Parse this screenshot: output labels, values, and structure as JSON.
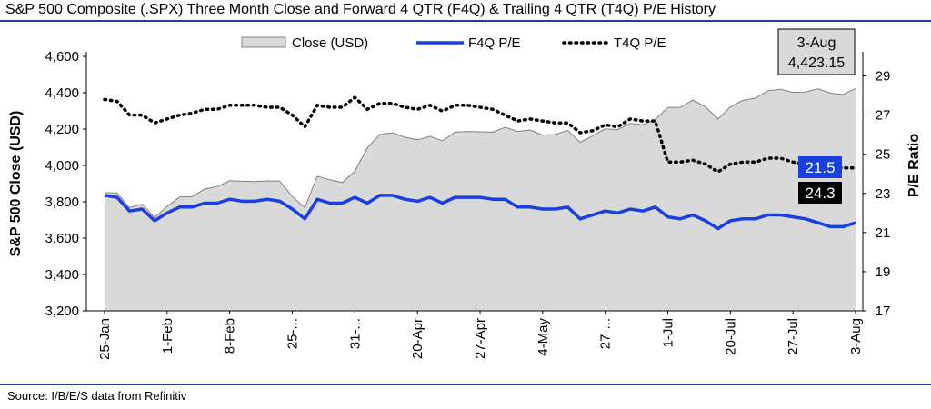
{
  "page": {
    "title": "S&P 500 Composite (.SPX) Three Month Close and Forward 4 QTR (F4Q) & Trailing 4 QTR (T4Q) P/E History",
    "source": "Source: I/B/E/S data from Refinitiv"
  },
  "colors": {
    "rule": "#1f3f9e",
    "area_fill": "#d9d9d9",
    "area_stroke": "#808080",
    "f4q": "#1a3fe0",
    "t4q": "#000000",
    "f4q_label_bg": "#1a3fe0",
    "t4q_label_bg": "#000000",
    "callout_bg": "#d9d9d9"
  },
  "chart_data": {
    "type": "area+line",
    "left_axis": {
      "label": "S&P 500 Close (USD)",
      "range": [
        3200,
        4600
      ],
      "ticks": [
        "3,200",
        "3,400",
        "3,600",
        "3,800",
        "4,000",
        "4,200",
        "4,400",
        "4,600"
      ]
    },
    "right_axis": {
      "label": "P/E Ratio",
      "range": [
        17,
        30
      ],
      "ticks": [
        "17",
        "19",
        "21",
        "23",
        "25",
        "27",
        "29"
      ]
    },
    "x_labels": [
      "25-Jan",
      "1-Feb",
      "8-Feb",
      "25-...",
      "31-...",
      "20-Apr",
      "27-Apr",
      "4-May",
      "27-...",
      "1-Jul",
      "20-Jul",
      "27-Jul",
      "3-Aug"
    ],
    "x_label_positions": [
      0,
      5,
      10,
      15,
      20,
      25,
      30,
      35,
      40,
      45,
      50,
      55,
      60
    ],
    "legend": [
      "Close (USD)",
      "F4Q P/E",
      "T4Q P/E"
    ],
    "callout": {
      "date": "3-Aug",
      "value": "4,423.15"
    },
    "end_labels": {
      "f4q": "21.5",
      "t4q": "24.3"
    },
    "series": [
      {
        "name": "Close (USD)",
        "axis": "left",
        "values": [
          3850,
          3849,
          3768,
          3787,
          3714,
          3774,
          3826,
          3829,
          3870,
          3884,
          3916,
          3913,
          3911,
          3915,
          3914,
          3829,
          3768,
          3941,
          3921,
          3906,
          3968,
          4097,
          4170,
          4180,
          4155,
          4141,
          4160,
          4135,
          4183,
          4187,
          4185,
          4183,
          4210,
          4187,
          4195,
          4167,
          4170,
          4193,
          4127,
          4163,
          4201,
          4197,
          4231,
          4224,
          4253,
          4319,
          4320,
          4360,
          4323,
          4255,
          4322,
          4358,
          4370,
          4411,
          4419,
          4402,
          4404,
          4422,
          4398,
          4390,
          4423
        ]
      },
      {
        "name": "F4Q P/E",
        "axis": "right",
        "values": [
          22.9,
          22.8,
          22.1,
          22.2,
          21.6,
          22.0,
          22.3,
          22.3,
          22.5,
          22.5,
          22.7,
          22.6,
          22.6,
          22.7,
          22.6,
          22.2,
          21.7,
          22.7,
          22.5,
          22.5,
          22.8,
          22.5,
          22.9,
          22.9,
          22.7,
          22.6,
          22.8,
          22.5,
          22.8,
          22.8,
          22.8,
          22.7,
          22.7,
          22.3,
          22.3,
          22.2,
          22.2,
          22.3,
          21.7,
          21.9,
          22.1,
          22.0,
          22.2,
          22.1,
          22.3,
          21.8,
          21.7,
          21.9,
          21.6,
          21.2,
          21.6,
          21.7,
          21.7,
          21.9,
          21.9,
          21.8,
          21.7,
          21.5,
          21.3,
          21.3,
          21.5
        ]
      },
      {
        "name": "T4Q P/E",
        "axis": "right",
        "values": [
          27.8,
          27.7,
          27.0,
          27.0,
          26.6,
          26.8,
          27.0,
          27.1,
          27.3,
          27.3,
          27.5,
          27.5,
          27.5,
          27.4,
          27.4,
          27.0,
          26.4,
          27.5,
          27.4,
          27.4,
          27.9,
          27.3,
          27.6,
          27.6,
          27.4,
          27.3,
          27.5,
          27.2,
          27.5,
          27.5,
          27.4,
          27.3,
          27.0,
          26.7,
          26.8,
          26.7,
          26.6,
          26.6,
          26.1,
          26.2,
          26.5,
          26.4,
          26.8,
          26.7,
          26.7,
          24.6,
          24.6,
          24.7,
          24.5,
          24.1,
          24.5,
          24.6,
          24.6,
          24.8,
          24.8,
          24.6,
          24.5,
          24.5,
          24.4,
          24.3,
          24.3
        ]
      }
    ]
  }
}
